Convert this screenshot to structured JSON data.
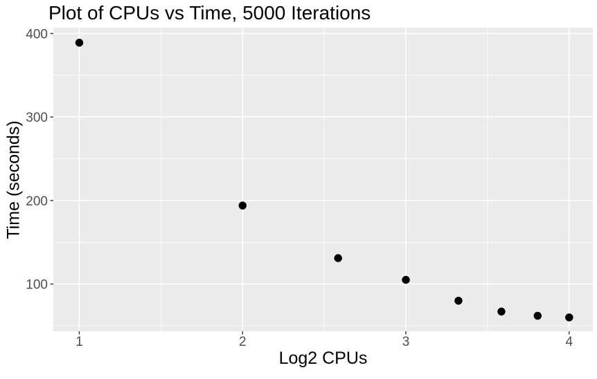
{
  "title": "Plot of CPUs vs Time, 5000 Iterations",
  "colors": {
    "page_bg": "#FFFFFF",
    "panel_bg": "#EBEBEB",
    "gridline": "#FFFFFF",
    "point": "#000000",
    "axis_tick_text": "#4D4D4D",
    "tick_mark": "#333333",
    "title_text": "#000000"
  },
  "chart_data": {
    "type": "scatter",
    "title": "Plot of CPUs vs Time, 5000 Iterations",
    "xlabel": "Log2 CPUs",
    "ylabel": "Time (seconds)",
    "x": [
      1,
      2,
      2.585,
      3,
      3.322,
      3.585,
      3.807,
      4
    ],
    "y": [
      389,
      194,
      131,
      105,
      80,
      67,
      62,
      60
    ],
    "x_tick_labels": [
      "1",
      "2",
      "3",
      "4"
    ],
    "x_ticks": [
      1,
      2,
      3,
      4
    ],
    "y_tick_labels": [
      "100",
      "200",
      "300",
      "400"
    ],
    "y_ticks": [
      100,
      200,
      300,
      400
    ],
    "x_minor_gridlines": [
      1.5,
      2.5,
      3.5
    ],
    "y_minor_gridlines": [
      50,
      150,
      250,
      350
    ],
    "xlim": [
      0.841,
      4.145
    ],
    "ylim": [
      43.4,
      407.0
    ],
    "grid": true,
    "legend": false
  }
}
